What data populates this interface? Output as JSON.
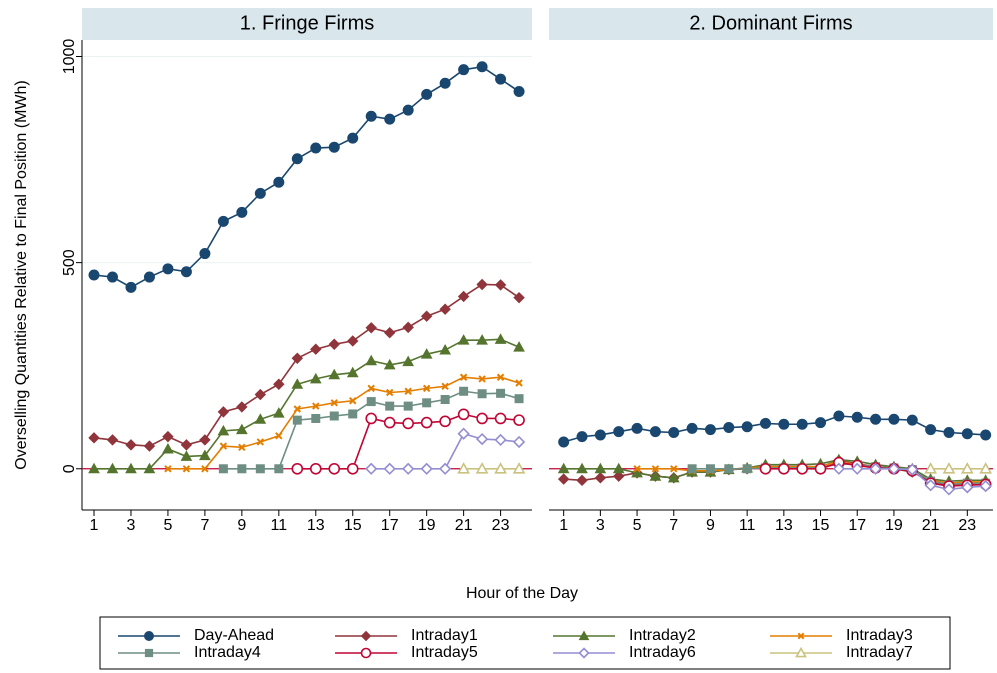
{
  "chart_data": [
    {
      "type": "line",
      "title": "1. Fringe Firms",
      "y_label": "Overselling Quantities Relative to Final Position (MWh)",
      "x_label": "Hour of the Day",
      "x": [
        1,
        2,
        3,
        4,
        5,
        6,
        7,
        8,
        9,
        10,
        11,
        12,
        13,
        14,
        15,
        16,
        17,
        18,
        19,
        20,
        21,
        22,
        23,
        24
      ],
      "xlim": [
        0.35,
        24.7
      ],
      "xticks": [
        1,
        3,
        5,
        7,
        9,
        11,
        13,
        15,
        17,
        19,
        21,
        23
      ],
      "ylim": [
        -100,
        1040
      ],
      "yticks": [
        0,
        500,
        1000
      ],
      "grid": true,
      "series": [
        {
          "name": "Day-Ahead",
          "color": "#1a476f",
          "marker": "circle",
          "values": [
            470,
            465,
            440,
            465,
            485,
            478,
            522,
            600,
            622,
            668,
            695,
            752,
            778,
            780,
            802,
            855,
            848,
            870,
            908,
            935,
            968,
            975,
            945,
            915
          ]
        },
        {
          "name": "Intraday1",
          "color": "#90353b",
          "marker": "diamond",
          "values": [
            75,
            70,
            58,
            55,
            78,
            58,
            70,
            138,
            150,
            180,
            205,
            268,
            290,
            302,
            310,
            342,
            330,
            343,
            370,
            387,
            418,
            447,
            446,
            415
          ]
        },
        {
          "name": "Intraday2",
          "color": "#55752f",
          "marker": "triangle",
          "values": [
            0,
            0,
            0,
            0,
            48,
            30,
            32,
            92,
            95,
            120,
            135,
            205,
            218,
            228,
            233,
            262,
            252,
            260,
            278,
            288,
            312,
            312,
            314,
            295
          ]
        },
        {
          "name": "Intraday3",
          "color": "#e37e00",
          "marker": "x",
          "values": [
            null,
            null,
            null,
            null,
            0,
            0,
            0,
            55,
            52,
            65,
            80,
            145,
            152,
            160,
            165,
            195,
            185,
            188,
            195,
            200,
            222,
            218,
            222,
            208
          ]
        },
        {
          "name": "Intraday4",
          "color": "#6e8e84",
          "marker": "square",
          "values": [
            null,
            null,
            null,
            null,
            null,
            null,
            null,
            0,
            0,
            0,
            0,
            118,
            122,
            128,
            133,
            163,
            152,
            152,
            160,
            168,
            188,
            182,
            183,
            170
          ]
        },
        {
          "name": "Intraday5",
          "color": "#c10534",
          "marker": "ocircle",
          "values": [
            null,
            null,
            null,
            null,
            null,
            null,
            null,
            null,
            null,
            null,
            null,
            0,
            0,
            0,
            0,
            122,
            112,
            110,
            112,
            115,
            132,
            122,
            122,
            118
          ]
        },
        {
          "name": "Intraday6",
          "color": "#938dd2",
          "marker": "odiamond",
          "values": [
            null,
            null,
            null,
            null,
            null,
            null,
            null,
            null,
            null,
            null,
            null,
            null,
            null,
            null,
            null,
            0,
            0,
            0,
            0,
            0,
            85,
            72,
            70,
            65
          ]
        },
        {
          "name": "Intraday7",
          "color": "#cac27e",
          "marker": "otriangle",
          "values": [
            null,
            null,
            null,
            null,
            null,
            null,
            null,
            null,
            null,
            null,
            null,
            null,
            null,
            null,
            null,
            null,
            null,
            null,
            null,
            null,
            0,
            0,
            0,
            0
          ]
        }
      ]
    },
    {
      "type": "line",
      "title": "2. Dominant Firms",
      "x": [
        1,
        2,
        3,
        4,
        5,
        6,
        7,
        8,
        9,
        10,
        11,
        12,
        13,
        14,
        15,
        16,
        17,
        18,
        19,
        20,
        21,
        22,
        23,
        24
      ],
      "xlim": [
        0.2,
        24.4
      ],
      "xticks": [
        1,
        3,
        5,
        7,
        9,
        11,
        13,
        15,
        17,
        19,
        21,
        23
      ],
      "ylim": [
        -100,
        1040
      ],
      "series": [
        {
          "name": "Day-Ahead",
          "color": "#1a476f",
          "marker": "circle",
          "values": [
            65,
            78,
            82,
            90,
            98,
            90,
            88,
            98,
            95,
            100,
            102,
            110,
            108,
            108,
            112,
            128,
            125,
            120,
            120,
            118,
            95,
            88,
            85,
            82
          ]
        },
        {
          "name": "Intraday1",
          "color": "#90353b",
          "marker": "diamond",
          "values": [
            -25,
            -28,
            -22,
            -18,
            -10,
            -18,
            -22,
            -8,
            -8,
            -2,
            0,
            5,
            5,
            5,
            5,
            20,
            12,
            5,
            0,
            -8,
            -30,
            -40,
            -38,
            -35
          ]
        },
        {
          "name": "Intraday2",
          "color": "#55752f",
          "marker": "triangle",
          "values": [
            0,
            0,
            0,
            0,
            -10,
            -18,
            -22,
            -8,
            -8,
            -2,
            2,
            10,
            10,
            10,
            12,
            22,
            18,
            10,
            5,
            0,
            -25,
            -30,
            -28,
            -28
          ]
        },
        {
          "name": "Intraday3",
          "color": "#e37e00",
          "marker": "x",
          "values": [
            null,
            null,
            null,
            null,
            0,
            0,
            0,
            -5,
            -5,
            -2,
            2,
            5,
            5,
            5,
            5,
            18,
            10,
            5,
            2,
            -5,
            -28,
            -35,
            -32,
            -32
          ]
        },
        {
          "name": "Intraday4",
          "color": "#6e8e84",
          "marker": "square",
          "values": [
            null,
            null,
            null,
            null,
            null,
            null,
            null,
            0,
            0,
            0,
            0,
            2,
            2,
            2,
            2,
            12,
            10,
            5,
            2,
            -2,
            -30,
            -38,
            -35,
            -35
          ]
        },
        {
          "name": "Intraday5",
          "color": "#c10534",
          "marker": "ocircle",
          "values": [
            null,
            null,
            null,
            null,
            null,
            null,
            null,
            null,
            null,
            null,
            null,
            0,
            0,
            0,
            0,
            15,
            8,
            2,
            0,
            -5,
            -35,
            -42,
            -40,
            -38
          ]
        },
        {
          "name": "Intraday6",
          "color": "#938dd2",
          "marker": "odiamond",
          "values": [
            null,
            null,
            null,
            null,
            null,
            null,
            null,
            null,
            null,
            null,
            null,
            null,
            null,
            null,
            null,
            0,
            0,
            0,
            0,
            -2,
            -40,
            -50,
            -45,
            -42
          ]
        },
        {
          "name": "Intraday7",
          "color": "#cac27e",
          "marker": "otriangle",
          "values": [
            null,
            null,
            null,
            null,
            null,
            null,
            null,
            null,
            null,
            null,
            null,
            null,
            null,
            null,
            null,
            null,
            null,
            null,
            null,
            null,
            0,
            0,
            0,
            0
          ]
        }
      ]
    }
  ]
}
